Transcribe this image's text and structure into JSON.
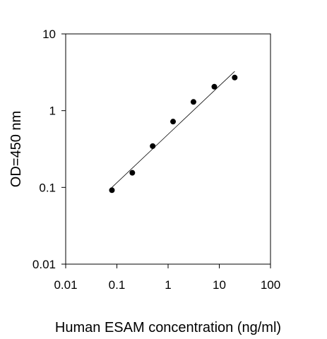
{
  "chart_data": {
    "type": "scatter",
    "xscale": "log",
    "yscale": "log",
    "xlim": [
      0.01,
      100
    ],
    "ylim": [
      0.01,
      10
    ],
    "xlabel": "Human ESAM concentration (ng/ml)",
    "ylabel": "OD=450 nm",
    "x_ticks": [
      "0.01",
      "0.1",
      "1",
      "10",
      "100"
    ],
    "y_ticks": [
      "0.01",
      "0.1",
      "1",
      "10"
    ],
    "grid": false,
    "series": [
      {
        "x": [
          0.08,
          0.2,
          0.5,
          1.25,
          3.13,
          8,
          20
        ],
        "y": [
          0.092,
          0.155,
          0.345,
          0.72,
          1.3,
          2.05,
          2.7
        ]
      }
    ],
    "fit_line": {
      "x": [
        0.08,
        20
      ],
      "y": [
        0.1,
        3.25
      ]
    }
  }
}
